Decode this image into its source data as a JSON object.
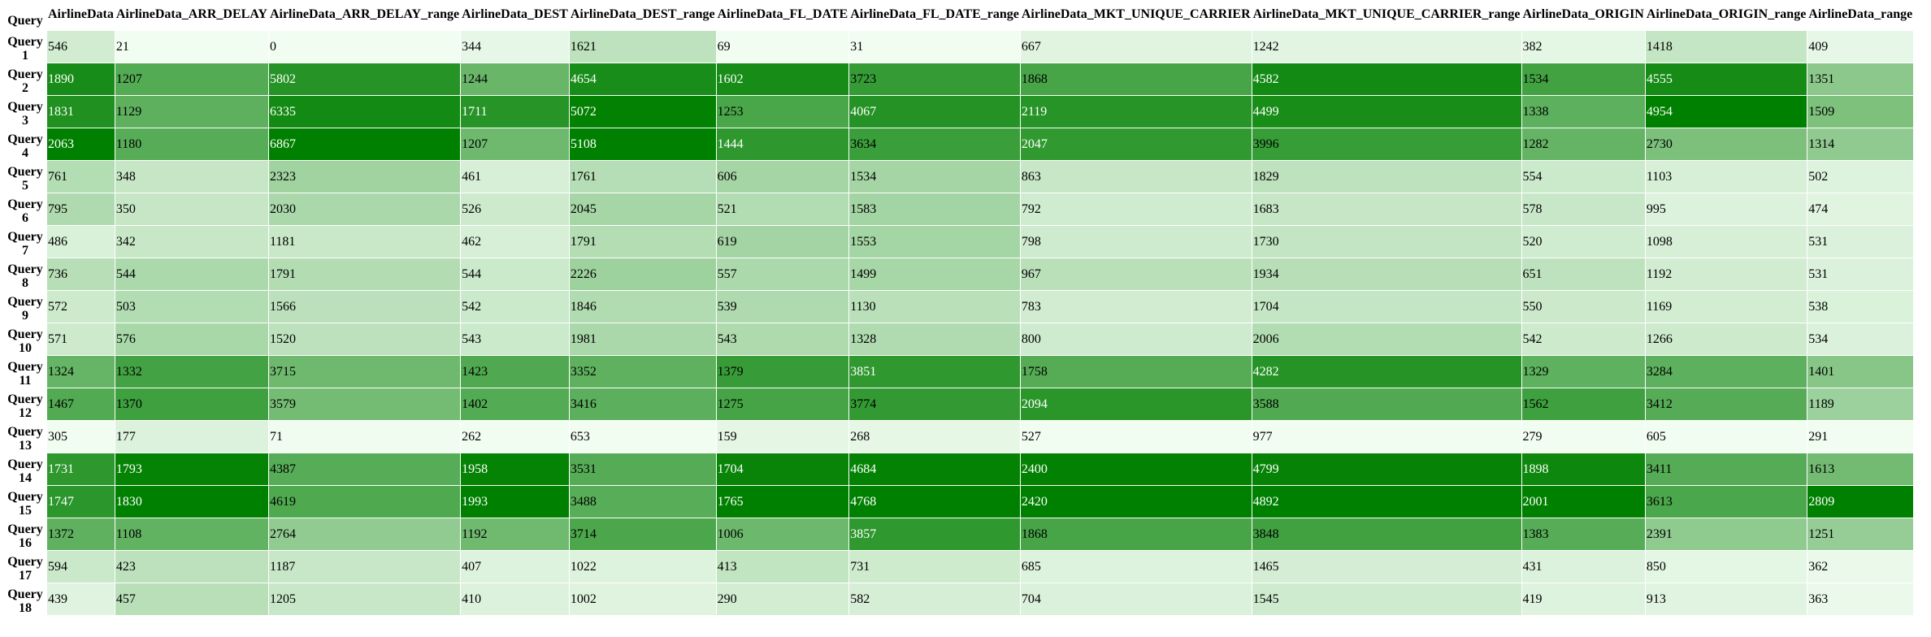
{
  "row_header": "Query",
  "columns": [
    "AirlineData",
    "AirlineData_ARR_DELAY",
    "AirlineData_ARR_DELAY_range",
    "AirlineData_DEST",
    "AirlineData_DEST_range",
    "AirlineData_FL_DATE",
    "AirlineData_FL_DATE_range",
    "AirlineData_MKT_UNIQUE_CARRIER",
    "AirlineData_MKT_UNIQUE_CARRIER_range",
    "AirlineData_ORIGIN",
    "AirlineData_ORIGIN_range",
    "AirlineData_range"
  ],
  "rows": [
    {
      "label": "Query 1",
      "values": [
        546,
        21,
        0,
        344,
        1621,
        69,
        31,
        667,
        1242,
        382,
        1418,
        409
      ]
    },
    {
      "label": "Query 2",
      "values": [
        1890,
        1207,
        5802,
        1244,
        4654,
        1602,
        3723,
        1868,
        4582,
        1534,
        4555,
        1351
      ]
    },
    {
      "label": "Query 3",
      "values": [
        1831,
        1129,
        6335,
        1711,
        5072,
        1253,
        4067,
        2119,
        4499,
        1338,
        4954,
        1509
      ]
    },
    {
      "label": "Query 4",
      "values": [
        2063,
        1180,
        6867,
        1207,
        5108,
        1444,
        3634,
        2047,
        3996,
        1282,
        2730,
        1314
      ]
    },
    {
      "label": "Query 5",
      "values": [
        761,
        348,
        2323,
        461,
        1761,
        606,
        1534,
        863,
        1829,
        554,
        1103,
        502
      ]
    },
    {
      "label": "Query 6",
      "values": [
        795,
        350,
        2030,
        526,
        2045,
        521,
        1583,
        792,
        1683,
        578,
        995,
        474
      ]
    },
    {
      "label": "Query 7",
      "values": [
        486,
        342,
        1181,
        462,
        1791,
        619,
        1553,
        798,
        1730,
        520,
        1098,
        531
      ]
    },
    {
      "label": "Query 8",
      "values": [
        736,
        544,
        1791,
        544,
        2226,
        557,
        1499,
        967,
        1934,
        651,
        1192,
        531
      ]
    },
    {
      "label": "Query 9",
      "values": [
        572,
        503,
        1566,
        542,
        1846,
        539,
        1130,
        783,
        1704,
        550,
        1169,
        538
      ]
    },
    {
      "label": "Query 10",
      "values": [
        571,
        576,
        1520,
        543,
        1981,
        543,
        1328,
        800,
        2006,
        542,
        1266,
        534
      ]
    },
    {
      "label": "Query 11",
      "values": [
        1324,
        1332,
        3715,
        1423,
        3352,
        1379,
        3851,
        1758,
        4282,
        1329,
        3284,
        1401
      ]
    },
    {
      "label": "Query 12",
      "values": [
        1467,
        1370,
        3579,
        1402,
        3416,
        1275,
        3774,
        2094,
        3588,
        1562,
        3412,
        1189
      ]
    },
    {
      "label": "Query 13",
      "values": [
        305,
        177,
        71,
        262,
        653,
        159,
        268,
        527,
        977,
        279,
        605,
        291
      ]
    },
    {
      "label": "Query 14",
      "values": [
        1731,
        1793,
        4387,
        1958,
        3531,
        1704,
        4684,
        2400,
        4799,
        1898,
        3411,
        1613
      ]
    },
    {
      "label": "Query 15",
      "values": [
        1747,
        1830,
        4619,
        1993,
        3488,
        1765,
        4768,
        2420,
        4892,
        2001,
        3613,
        2809
      ]
    },
    {
      "label": "Query 16",
      "values": [
        1372,
        1108,
        2764,
        1192,
        3714,
        1006,
        3857,
        1868,
        3848,
        1383,
        2391,
        1251
      ]
    },
    {
      "label": "Query 17",
      "values": [
        594,
        423,
        1187,
        407,
        1022,
        413,
        731,
        685,
        1465,
        431,
        850,
        362
      ]
    },
    {
      "label": "Query 18",
      "values": [
        439,
        457,
        1205,
        410,
        1002,
        290,
        582,
        704,
        1545,
        419,
        913,
        363
      ]
    }
  ],
  "colors": {
    "low": "#f2fdf2",
    "high": "#008000"
  }
}
